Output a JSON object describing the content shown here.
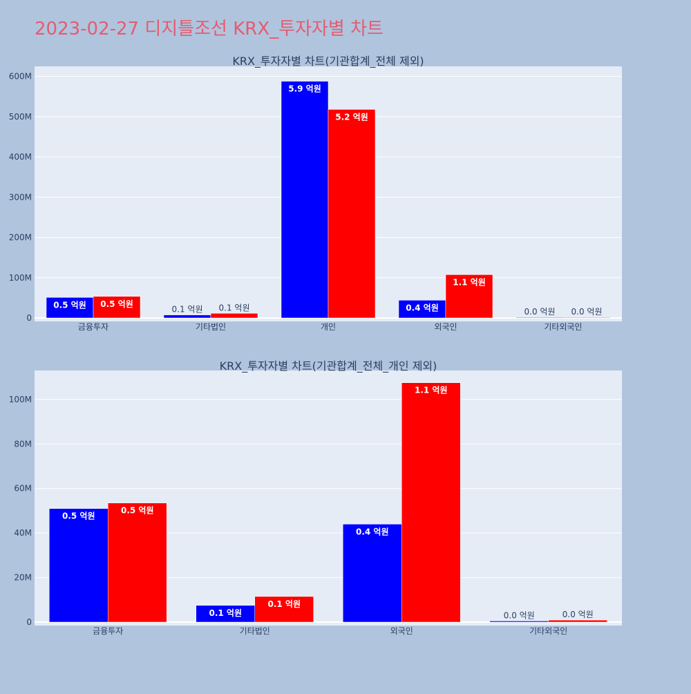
{
  "page_title": "2023-02-27 디지틀조선 KRX_투자자별 차트",
  "colors": {
    "background": "#b0c4de",
    "plot_bg": "#e5ecf6",
    "grid": "#ffffff",
    "title": "#e45c6f",
    "text": "#2a3f5f",
    "series_a": "#0000ff",
    "series_b": "#ff0000"
  },
  "chart_data": [
    {
      "type": "bar",
      "title": "KRX_투자자별 차트(기관합계_전체 제외)",
      "categories": [
        "금융투자",
        "기타법인",
        "개인",
        "외국인",
        "기타외국인"
      ],
      "ylim": [
        0,
        625000000
      ],
      "y_ticks": [
        {
          "value": 0,
          "label": "0"
        },
        {
          "value": 100000000,
          "label": "100M"
        },
        {
          "value": 200000000,
          "label": "200M"
        },
        {
          "value": 300000000,
          "label": "300M"
        },
        {
          "value": 400000000,
          "label": "400M"
        },
        {
          "value": 500000000,
          "label": "500M"
        },
        {
          "value": 600000000,
          "label": "600M"
        }
      ],
      "grid": true,
      "legend": "none",
      "series": [
        {
          "color": "#0000ff",
          "values": [
            51000000,
            7500000,
            588000000,
            44000000,
            500000
          ],
          "labels": [
            "0.5 억원",
            "0.1 억원",
            "5.9 억원",
            "0.4 억원",
            "0.0 억원"
          ]
        },
        {
          "color": "#ff0000",
          "values": [
            53500000,
            11500000,
            518000000,
            107500000,
            900000
          ],
          "labels": [
            "0.5 억원",
            "0.1 억원",
            "5.2 억원",
            "1.1 억원",
            "0.0 억원"
          ]
        }
      ]
    },
    {
      "type": "bar",
      "title": "KRX_투자자별 차트(기관합계_전체_개인 제외)",
      "categories": [
        "금융투자",
        "기타법인",
        "외국인",
        "기타외국인"
      ],
      "ylim": [
        0,
        113000000
      ],
      "y_ticks": [
        {
          "value": 0,
          "label": "0"
        },
        {
          "value": 20000000,
          "label": "20M"
        },
        {
          "value": 40000000,
          "label": "40M"
        },
        {
          "value": 60000000,
          "label": "60M"
        },
        {
          "value": 80000000,
          "label": "80M"
        },
        {
          "value": 100000000,
          "label": "100M"
        }
      ],
      "grid": true,
      "legend": "none",
      "series": [
        {
          "color": "#0000ff",
          "values": [
            51000000,
            7500000,
            44000000,
            500000
          ],
          "labels": [
            "0.5 억원",
            "0.1 억원",
            "0.4 억원",
            "0.0 억원"
          ]
        },
        {
          "color": "#ff0000",
          "values": [
            53500000,
            11500000,
            107500000,
            900000
          ],
          "labels": [
            "0.5 억원",
            "0.1 억원",
            "1.1 억원",
            "0.0 억원"
          ]
        }
      ]
    }
  ]
}
